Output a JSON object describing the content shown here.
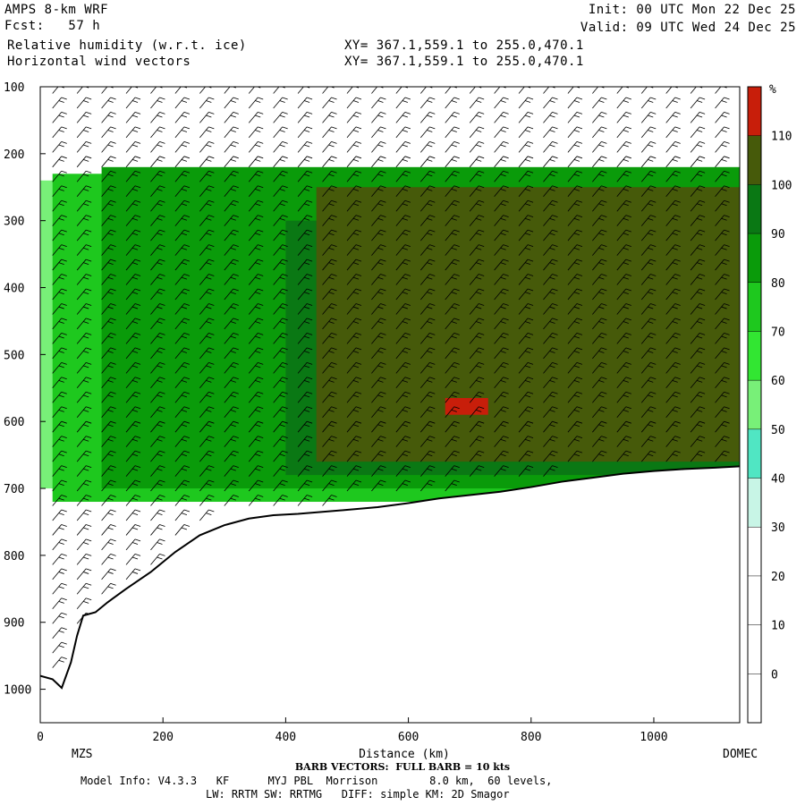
{
  "header": {
    "model": "AMPS 8-km WRF",
    "forecast": "Fcst:   57 h",
    "field1": "Relative humidity (w.r.t. ice)",
    "field2": "Horizontal wind vectors",
    "init": "Init: 00 UTC Mon 22 Dec 25",
    "valid": "Valid: 09 UTC Wed 24 Dec 25",
    "xy1": "XY= 367.1,559.1 to 255.0,470.1",
    "xy2": "XY= 367.1,559.1 to 255.0,470.1"
  },
  "footer": {
    "barb": "BARB VECTORS:  FULL BARB = 10 kts",
    "model_info": "Model Info: V4.3.3   KF      MYJ PBL  Morrison        8.0 km,  60 levels,",
    "physics": "LW: RRTM SW: RRTMG   DIFF: simple KM: 2D Smagor"
  },
  "chart_data": {
    "type": "heatmap",
    "title": "Relative humidity (w.r.t. ice)",
    "xlabel": "Distance (km)",
    "ylabel": "",
    "xlim": [
      0,
      1140
    ],
    "ylim": [
      1050,
      100
    ],
    "x_ticks": [
      0,
      200,
      400,
      600,
      800,
      1000
    ],
    "y_ticks": [
      100,
      200,
      300,
      400,
      500,
      600,
      700,
      800,
      900,
      1000
    ],
    "endpoint_labels": {
      "left": "MZS",
      "right": "DOMEC"
    },
    "colorbar": {
      "unit": "%",
      "levels": [
        0,
        10,
        20,
        30,
        40,
        50,
        60,
        70,
        80,
        90,
        100,
        110
      ],
      "colors": [
        "#ffffff",
        "#ffffff",
        "#ffffff",
        "#ffffff",
        "#c8f5e6",
        "#50e6c3",
        "#78f078",
        "#32e632",
        "#1ec81e",
        "#0a9b0a",
        "#0a7814",
        "#465a0a",
        "#c81e0a"
      ]
    },
    "terrain_profile": {
      "x": [
        0,
        20,
        35,
        50,
        60,
        70,
        90,
        110,
        140,
        180,
        220,
        260,
        300,
        340,
        380,
        420,
        460,
        500,
        550,
        600,
        650,
        700,
        750,
        800,
        850,
        900,
        950,
        1000,
        1050,
        1100,
        1140
      ],
      "p": [
        980,
        985,
        998,
        960,
        920,
        890,
        885,
        870,
        850,
        825,
        795,
        770,
        755,
        745,
        740,
        738,
        735,
        732,
        728,
        722,
        715,
        710,
        705,
        698,
        690,
        684,
        678,
        674,
        671,
        669,
        667
      ]
    },
    "rh_regions": [
      {
        "level": 50,
        "x": [
          0,
          1140
        ],
        "p": [
          240,
          700
        ]
      },
      {
        "level": 70,
        "x": [
          20,
          1140
        ],
        "p": [
          230,
          720
        ]
      },
      {
        "level": 80,
        "x": [
          100,
          1140
        ],
        "p": [
          220,
          700
        ]
      },
      {
        "level": 90,
        "x": [
          400,
          1140
        ],
        "p": [
          300,
          680
        ]
      },
      {
        "level": 100,
        "x": [
          450,
          1140
        ],
        "p": [
          250,
          660
        ]
      },
      {
        "level": 110,
        "x": [
          660,
          730
        ],
        "p": [
          565,
          590
        ]
      }
    ],
    "wind_barbs": "Horizontal wind vectors"
  }
}
